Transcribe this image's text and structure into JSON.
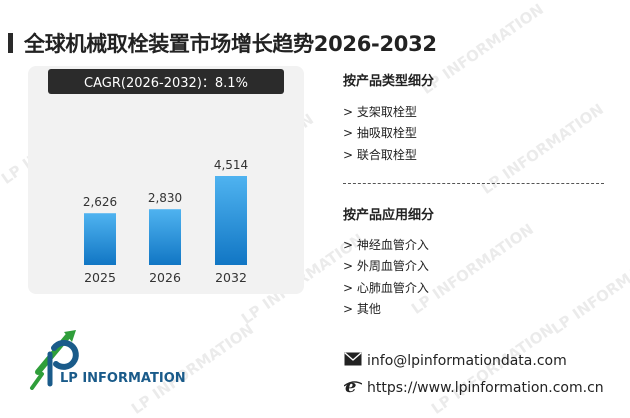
{
  "title": "全球机械取栓装置市场增长趋势2026-2032",
  "cagr_label": "CAGR(2026-2032)：8.1%",
  "chart_data": {
    "type": "bar",
    "title": "",
    "categories": [
      "2025",
      "2026",
      "2032"
    ],
    "values": [
      2626,
      2830,
      4514
    ],
    "value_labels": [
      "2,626",
      "2,830",
      "4,514"
    ],
    "ylim": [
      0,
      4514
    ],
    "colors": {
      "bar_top": "#4fb3f0",
      "bar_bottom": "#1176c4"
    }
  },
  "segments": {
    "by_type": {
      "title": "按产品类型细分",
      "items": [
        "> 支架取栓型",
        "> 抽吸取栓型",
        "> 联合取栓型"
      ]
    },
    "by_application": {
      "title": "按产品应用细分",
      "items": [
        "> 神经血管介入",
        "> 外周血管介入",
        "> 心肺血管介入",
        "> 其他"
      ]
    }
  },
  "contact": {
    "email": "info@lpinformationdata.com",
    "website": "https://www.lpinformation.com.cn",
    "email_icon": "envelope-icon",
    "website_icon": "browser-e-icon"
  },
  "logo": {
    "text": "LP INFORMATION"
  },
  "watermark": {
    "text": "LP INFORMATION"
  }
}
